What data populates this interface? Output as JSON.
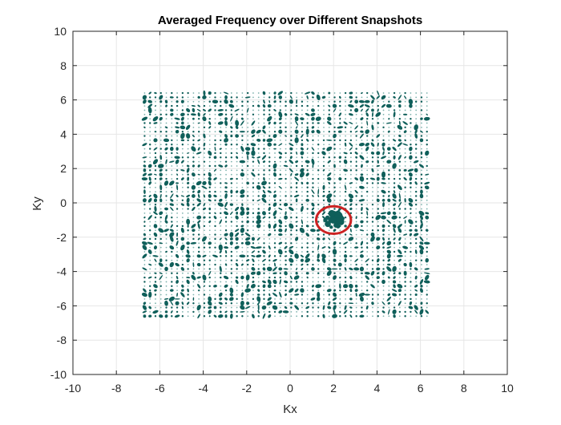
{
  "chart_data": {
    "type": "scatter",
    "title": "Averaged Frequency over Different Snapshots",
    "xlabel": "Kx",
    "ylabel": "Ky",
    "xlim": [
      -10,
      10
    ],
    "ylim": [
      -10,
      10
    ],
    "xticks": [
      -10,
      -8,
      -6,
      -4,
      -2,
      0,
      2,
      4,
      6,
      8,
      10
    ],
    "yticks": [
      -10,
      -8,
      -6,
      -4,
      -2,
      0,
      2,
      4,
      6,
      8,
      10
    ],
    "xtick_labels": [
      "-10",
      "-8",
      "-6",
      "-4",
      "-2",
      "0",
      "2",
      "4",
      "6",
      "8",
      "10"
    ],
    "ytick_labels": [
      "-10",
      "-8",
      "-6",
      "-4",
      "-2",
      "0",
      "2",
      "4",
      "6",
      "8",
      "10"
    ],
    "grid": true,
    "data_region": {
      "x": [
        -6.7,
        6.5
      ],
      "y": [
        -6.6,
        6.4
      ]
    },
    "highlight": {
      "shape": "circle",
      "center": [
        2.0,
        -1.0
      ],
      "radius": 0.8
    },
    "colors": {
      "points": "#0f5f5a",
      "points_light": "#7fb3ae",
      "highlight": "#cc2222",
      "grid": "#e6e6e6",
      "axis": "#262626"
    }
  }
}
